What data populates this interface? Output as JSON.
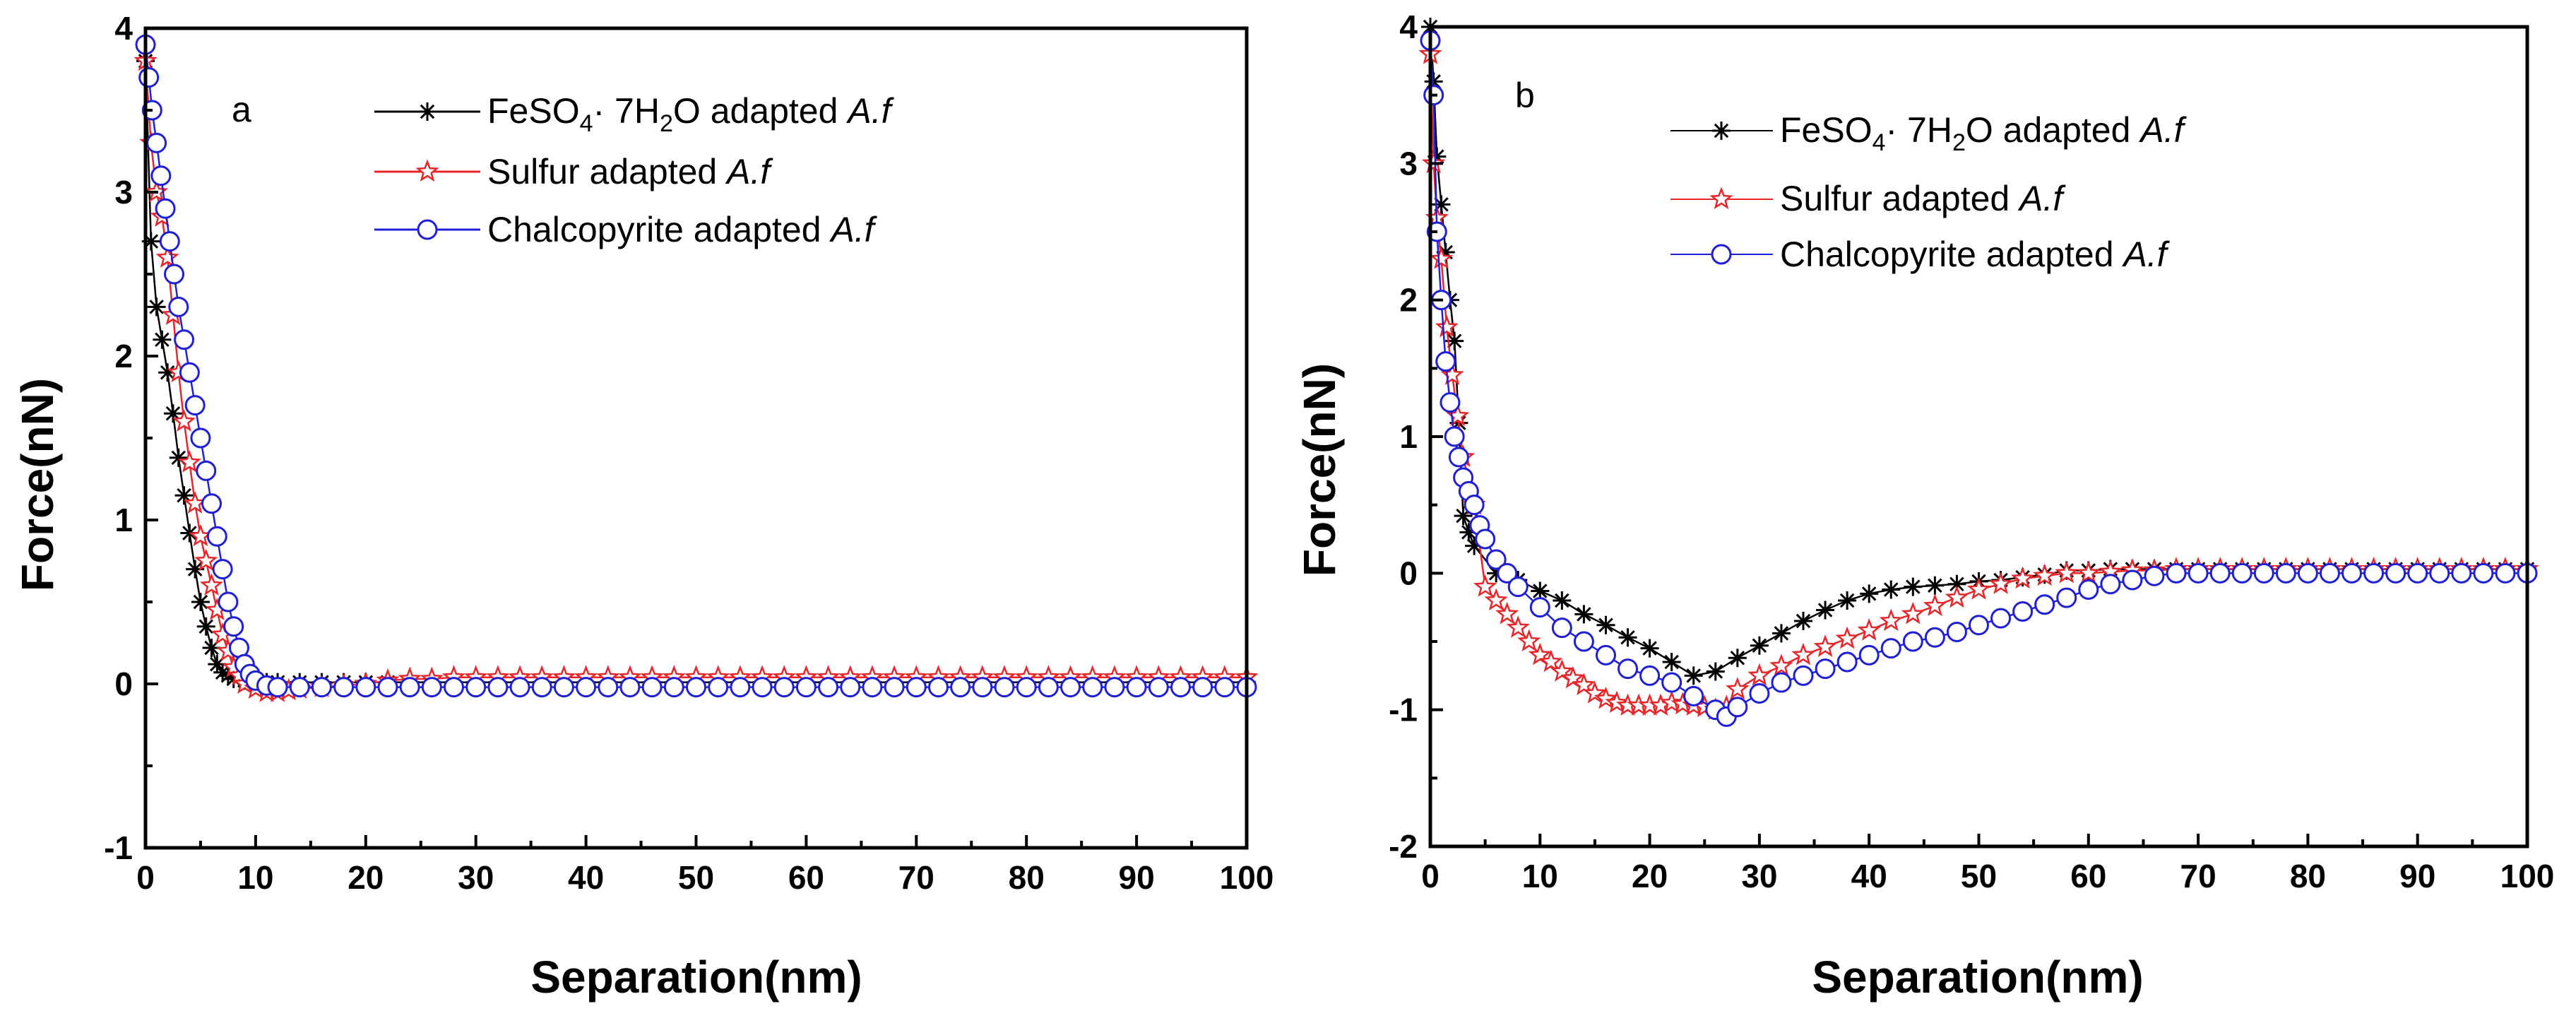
{
  "chart_data": [
    {
      "type": "line",
      "panel_label": "a",
      "xlabel": "Separation(nm)",
      "ylabel": "Force(nN)",
      "xlim": [
        0,
        100
      ],
      "ylim": [
        -1,
        4
      ],
      "xticks": [
        0,
        10,
        20,
        30,
        40,
        50,
        60,
        70,
        80,
        90,
        100
      ],
      "yticks": [
        -1,
        0,
        1,
        2,
        3,
        4
      ],
      "legend_position": "top-right",
      "series": [
        {
          "name": "FeSO4· 7H2O adapted A.f",
          "legend": {
            "main": "FeSO",
            "sub1": "4",
            "mid": "· 7H",
            "sub2": "2",
            "tail": "O adapted ",
            "italic": "A.f"
          },
          "color": "#000000",
          "marker": "asterisk",
          "x": [
            0,
            0.5,
            1,
            1.5,
            2,
            2.5,
            3,
            3.5,
            4,
            4.5,
            5,
            5.5,
            6,
            6.5,
            7,
            7.5,
            8,
            9,
            10,
            11,
            12,
            14,
            16,
            18,
            20,
            22,
            24,
            26,
            28,
            30,
            32,
            34,
            36,
            38,
            40,
            42,
            44,
            46,
            48,
            50,
            52,
            54,
            56,
            58,
            60,
            62,
            64,
            66,
            68,
            70,
            72,
            74,
            76,
            78,
            80,
            82,
            84,
            86,
            88,
            90,
            92,
            94,
            96,
            98,
            100
          ],
          "y": [
            3.8,
            2.7,
            2.3,
            2.1,
            1.9,
            1.65,
            1.38,
            1.15,
            0.92,
            0.7,
            0.5,
            0.35,
            0.22,
            0.12,
            0.07,
            0.05,
            0.03,
            0.02,
            0.01,
            0.01,
            0.01,
            0.01,
            0.01,
            0.01,
            0.01,
            0.01,
            0.01,
            0.01,
            0.01,
            0.01,
            0.01,
            0.01,
            0.01,
            0.01,
            0.01,
            0.01,
            0.01,
            0.01,
            0.01,
            0.01,
            0.01,
            0.01,
            0.01,
            0.01,
            0.01,
            0.01,
            0.01,
            0.01,
            0.01,
            0.01,
            0.01,
            0.01,
            0.01,
            0.01,
            0.01,
            0.01,
            0.01,
            0.01,
            0.01,
            0.01,
            0.01,
            0.01,
            0.01,
            0.01,
            0.01
          ]
        },
        {
          "name": "Sulfur adapted A.f",
          "legend": {
            "main": "Sulfur adapted ",
            "italic": "A.f"
          },
          "color": "#e8262a",
          "marker": "star",
          "x": [
            0,
            0.5,
            1,
            1.5,
            2,
            2.5,
            3,
            3.5,
            4,
            4.5,
            5,
            5.5,
            6,
            6.5,
            7,
            7.5,
            8,
            8.5,
            9,
            10,
            11,
            12,
            13,
            14,
            16,
            18,
            20,
            22,
            24,
            26,
            28,
            30,
            32,
            34,
            36,
            38,
            40,
            42,
            44,
            46,
            48,
            50,
            52,
            54,
            56,
            58,
            60,
            62,
            64,
            66,
            68,
            70,
            72,
            74,
            76,
            78,
            80,
            82,
            84,
            86,
            88,
            90,
            92,
            94,
            96,
            98,
            100
          ],
          "y": [
            3.8,
            3.3,
            3.0,
            2.85,
            2.6,
            2.25,
            1.9,
            1.6,
            1.35,
            1.1,
            0.9,
            0.75,
            0.6,
            0.45,
            0.3,
            0.2,
            0.1,
            0.05,
            0.0,
            -0.03,
            -0.05,
            -0.05,
            -0.04,
            -0.03,
            -0.02,
            -0.01,
            0.0,
            0.02,
            0.03,
            0.03,
            0.04,
            0.04,
            0.04,
            0.04,
            0.04,
            0.04,
            0.04,
            0.04,
            0.04,
            0.04,
            0.04,
            0.04,
            0.04,
            0.04,
            0.04,
            0.04,
            0.04,
            0.04,
            0.04,
            0.04,
            0.04,
            0.04,
            0.04,
            0.04,
            0.04,
            0.04,
            0.04,
            0.04,
            0.04,
            0.04,
            0.04,
            0.04,
            0.04,
            0.04,
            0.04,
            0.04,
            0.04
          ]
        },
        {
          "name": "Chalcopyrite adapted A.f",
          "legend": {
            "main": "Chalcopyrite adapted ",
            "italic": "A.f"
          },
          "color": "#1f1fd8",
          "marker": "circle",
          "x": [
            0,
            0.3,
            0.6,
            1,
            1.4,
            1.8,
            2.2,
            2.6,
            3,
            3.5,
            4,
            4.5,
            5,
            5.5,
            6,
            6.5,
            7,
            7.5,
            8,
            8.5,
            9,
            9.5,
            10,
            11,
            12,
            14,
            16,
            18,
            20,
            22,
            24,
            26,
            28,
            30,
            32,
            34,
            36,
            38,
            40,
            42,
            44,
            46,
            48,
            50,
            52,
            54,
            56,
            58,
            60,
            62,
            64,
            66,
            68,
            70,
            72,
            74,
            76,
            78,
            80,
            82,
            84,
            86,
            88,
            90,
            92,
            94,
            96,
            98,
            100
          ],
          "y": [
            3.9,
            3.7,
            3.5,
            3.3,
            3.1,
            2.9,
            2.7,
            2.5,
            2.3,
            2.1,
            1.9,
            1.7,
            1.5,
            1.3,
            1.1,
            0.9,
            0.7,
            0.5,
            0.35,
            0.22,
            0.12,
            0.06,
            0.02,
            -0.01,
            -0.02,
            -0.02,
            -0.02,
            -0.02,
            -0.02,
            -0.02,
            -0.02,
            -0.02,
            -0.02,
            -0.02,
            -0.02,
            -0.02,
            -0.02,
            -0.02,
            -0.02,
            -0.02,
            -0.02,
            -0.02,
            -0.02,
            -0.02,
            -0.02,
            -0.02,
            -0.02,
            -0.02,
            -0.02,
            -0.02,
            -0.02,
            -0.02,
            -0.02,
            -0.02,
            -0.02,
            -0.02,
            -0.02,
            -0.02,
            -0.02,
            -0.02,
            -0.02,
            -0.02,
            -0.02,
            -0.02,
            -0.02,
            -0.02,
            -0.02,
            -0.02,
            -0.02
          ]
        }
      ]
    },
    {
      "type": "line",
      "panel_label": "b",
      "xlabel": "Separation(nm)",
      "ylabel": "Force(nN)",
      "xlim": [
        0,
        100
      ],
      "ylim": [
        -2,
        4
      ],
      "xticks": [
        0,
        10,
        20,
        30,
        40,
        50,
        60,
        70,
        80,
        90,
        100
      ],
      "yticks": [
        -2,
        -1,
        0,
        1,
        2,
        3,
        4
      ],
      "legend_position": "top-right",
      "series": [
        {
          "name": "FeSO4· 7H2O adapted A.f",
          "legend": {
            "main": "FeSO",
            "sub1": "4",
            "mid": "· 7H",
            "sub2": "2",
            "tail": "O adapted ",
            "italic": "A.f"
          },
          "color": "#000000",
          "marker": "asterisk",
          "x": [
            0,
            0.3,
            0.6,
            1,
            1.4,
            1.8,
            2.2,
            2.6,
            3,
            3.5,
            4,
            6,
            8,
            10,
            12,
            14,
            16,
            18,
            20,
            22,
            24,
            26,
            28,
            30,
            32,
            34,
            36,
            38,
            40,
            42,
            44,
            46,
            48,
            50,
            52,
            54,
            56,
            58,
            60,
            62,
            64,
            66,
            68,
            70,
            72,
            74,
            76,
            78,
            80,
            82,
            84,
            86,
            88,
            90,
            92,
            94,
            96,
            98,
            100
          ],
          "y": [
            4.0,
            3.6,
            3.05,
            2.7,
            2.35,
            2.0,
            1.7,
            1.1,
            0.42,
            0.3,
            0.2,
            0.0,
            -0.05,
            -0.13,
            -0.2,
            -0.3,
            -0.38,
            -0.47,
            -0.55,
            -0.65,
            -0.75,
            -0.72,
            -0.62,
            -0.53,
            -0.44,
            -0.35,
            -0.27,
            -0.2,
            -0.15,
            -0.12,
            -0.1,
            -0.09,
            -0.08,
            -0.06,
            -0.05,
            -0.03,
            -0.01,
            0.02,
            0.02,
            0.03,
            0.03,
            0.03,
            0.03,
            0.03,
            0.03,
            0.03,
            0.03,
            0.03,
            0.03,
            0.03,
            0.03,
            0.03,
            0.03,
            0.03,
            0.03,
            0.03,
            0.03,
            0.03,
            0.03
          ]
        },
        {
          "name": "Sulfur adapted A.f",
          "legend": {
            "main": "Sulfur adapted ",
            "italic": "A.f"
          },
          "color": "#e8262a",
          "marker": "star",
          "x": [
            0,
            0.3,
            0.6,
            1,
            1.5,
            2,
            2.5,
            3,
            4,
            5,
            6,
            7,
            8,
            9,
            10,
            11,
            12,
            13,
            14,
            15,
            16,
            17,
            18,
            19,
            20,
            21,
            22,
            23,
            24,
            25,
            26,
            27,
            28,
            30,
            32,
            34,
            36,
            38,
            40,
            42,
            44,
            46,
            48,
            50,
            52,
            54,
            56,
            58,
            60,
            62,
            64,
            66,
            68,
            70,
            72,
            74,
            76,
            78,
            80,
            82,
            84,
            86,
            88,
            90,
            92,
            94,
            96,
            98,
            100
          ],
          "y": [
            3.8,
            3.0,
            2.6,
            2.3,
            1.8,
            1.45,
            1.15,
            0.85,
            0.5,
            -0.1,
            -0.2,
            -0.3,
            -0.4,
            -0.5,
            -0.6,
            -0.65,
            -0.72,
            -0.77,
            -0.82,
            -0.88,
            -0.92,
            -0.95,
            -0.97,
            -0.97,
            -0.97,
            -0.97,
            -0.95,
            -0.96,
            -0.97,
            -0.98,
            -1.0,
            -0.98,
            -0.85,
            -0.75,
            -0.68,
            -0.6,
            -0.54,
            -0.48,
            -0.42,
            -0.35,
            -0.3,
            -0.24,
            -0.18,
            -0.12,
            -0.08,
            -0.04,
            -0.02,
            0.0,
            0.0,
            0.01,
            0.02,
            0.02,
            0.03,
            0.03,
            0.03,
            0.03,
            0.03,
            0.03,
            0.03,
            0.03,
            0.03,
            0.03,
            0.03,
            0.03,
            0.03,
            0.03,
            0.03,
            0.03,
            0.03
          ]
        },
        {
          "name": "Chalcopyrite adapted A.f",
          "legend": {
            "main": "Chalcopyrite adapted ",
            "italic": "A.f"
          },
          "color": "#1f1fd8",
          "marker": "circle",
          "x": [
            0,
            0.3,
            0.6,
            1,
            1.4,
            1.8,
            2.2,
            2.6,
            3,
            3.5,
            4,
            4.5,
            5,
            6,
            7,
            8,
            10,
            12,
            14,
            16,
            18,
            20,
            22,
            24,
            26,
            27,
            28,
            30,
            32,
            34,
            36,
            38,
            40,
            42,
            44,
            46,
            48,
            50,
            52,
            54,
            56,
            58,
            60,
            62,
            64,
            66,
            68,
            70,
            72,
            74,
            76,
            78,
            80,
            82,
            84,
            86,
            88,
            90,
            92,
            94,
            96,
            98,
            100
          ],
          "y": [
            3.9,
            3.5,
            2.5,
            2.0,
            1.55,
            1.25,
            1.0,
            0.85,
            0.7,
            0.6,
            0.5,
            0.35,
            0.25,
            0.1,
            0.0,
            -0.1,
            -0.25,
            -0.4,
            -0.5,
            -0.6,
            -0.7,
            -0.75,
            -0.8,
            -0.9,
            -1.0,
            -1.05,
            -0.98,
            -0.88,
            -0.8,
            -0.75,
            -0.7,
            -0.65,
            -0.6,
            -0.55,
            -0.5,
            -0.47,
            -0.43,
            -0.38,
            -0.33,
            -0.28,
            -0.23,
            -0.18,
            -0.12,
            -0.08,
            -0.05,
            -0.02,
            0.0,
            0.0,
            0.0,
            0.0,
            0.0,
            0.0,
            0.0,
            0.0,
            0.0,
            0.0,
            0.0,
            0.0,
            0.0,
            0.0,
            0.0,
            0.0,
            0.0
          ]
        }
      ]
    }
  ]
}
